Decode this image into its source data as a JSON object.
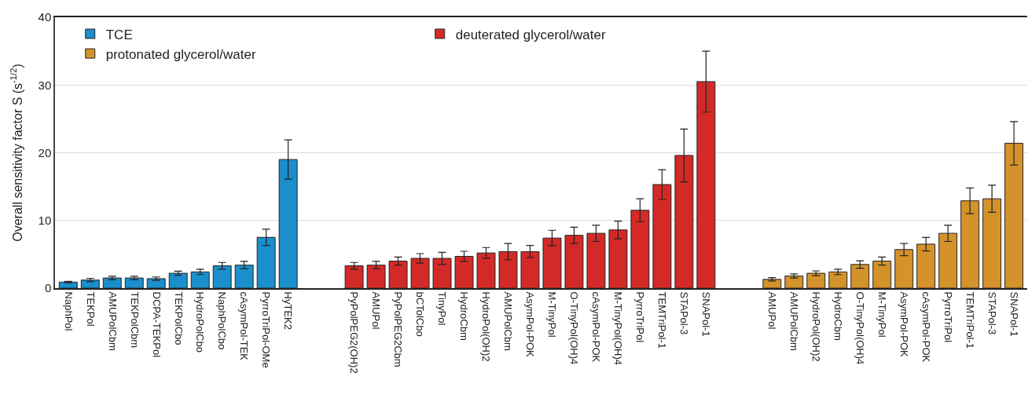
{
  "chart_data": {
    "type": "bar",
    "ylabel": "Overall sensitivity factor S (s$^{-1/2}$)",
    "categories": [
      "NaphPol",
      "TEKPol",
      "AMUPolCbm",
      "TEKPolCbm",
      "DCPA-TEKPol",
      "TEKPolCbo",
      "HydroPolCbo",
      "NaphPolCbo",
      "cAsymPol-TEK",
      "PyrroTriPol-OMe",
      "HyTEK2",
      null,
      null,
      "PyPolPEG2(OH)2",
      "AMUPol",
      "PyPolPEG2Cbm",
      "bCTolCbo",
      "TinyPol",
      "HydroCbm",
      "HydroPol(OH)2",
      "AMUPolCbm",
      "AsymPol-POK",
      "M-TinyPol",
      "O-TinyPol(OH)4",
      "cAsymPol-POK",
      "M-TinyPol(OH)4",
      "PyrroTriPol",
      "TEMTriPol-1",
      "STAPol-3",
      "SNAPol-1",
      null,
      null,
      "AMUPol",
      "AMUPolCbm",
      "HydroPol(OH)2",
      "HydroCbm",
      "O-TinyPol(OH)4",
      "M-TinyPol",
      "AsymPol-POK",
      "cAsymPol-POK",
      "PyrroTriPol",
      "TEMTriPol-1",
      "STAPol-3",
      "SNAPol-1"
    ],
    "series": [
      {
        "name": "TCE",
        "color": "#1b8fcb",
        "values": [
          0.9,
          1.2,
          1.5,
          1.5,
          1.4,
          2.2,
          2.4,
          3.3,
          3.4,
          7.5,
          19.0,
          null,
          null,
          null,
          null,
          null,
          null,
          null,
          null,
          null,
          null,
          null,
          null,
          null,
          null,
          null,
          null,
          null,
          null,
          null,
          null,
          null,
          null,
          null,
          null,
          null,
          null,
          null,
          null,
          null,
          null,
          null,
          null,
          null
        ],
        "errors": [
          0.1,
          0.25,
          0.25,
          0.25,
          0.25,
          0.3,
          0.4,
          0.5,
          0.55,
          1.2,
          2.9,
          null,
          null,
          null,
          null,
          null,
          null,
          null,
          null,
          null,
          null,
          null,
          null,
          null,
          null,
          null,
          null,
          null,
          null,
          null,
          null,
          null,
          null,
          null,
          null,
          null,
          null,
          null,
          null,
          null,
          null,
          null,
          null,
          null
        ]
      },
      {
        "name": "deuterated glycerol/water",
        "color": "#d42a27",
        "values": [
          null,
          null,
          null,
          null,
          null,
          null,
          null,
          null,
          null,
          null,
          null,
          null,
          null,
          3.3,
          3.4,
          4.0,
          4.4,
          4.4,
          4.7,
          5.2,
          5.4,
          5.4,
          7.4,
          7.8,
          8.1,
          8.6,
          11.5,
          15.3,
          19.6,
          30.5,
          null,
          null,
          null,
          null,
          null,
          null,
          null,
          null,
          null,
          null,
          null,
          null,
          null,
          null
        ],
        "errors": [
          null,
          null,
          null,
          null,
          null,
          null,
          null,
          null,
          null,
          null,
          null,
          null,
          null,
          0.5,
          0.55,
          0.6,
          0.7,
          0.9,
          0.75,
          0.8,
          1.2,
          0.9,
          1.15,
          1.2,
          1.2,
          1.3,
          1.7,
          2.2,
          3.9,
          4.5,
          null,
          null,
          null,
          null,
          null,
          null,
          null,
          null,
          null,
          null,
          null,
          null,
          null,
          null
        ]
      },
      {
        "name": "protonated glycerol/water",
        "color": "#d4922a",
        "values": [
          null,
          null,
          null,
          null,
          null,
          null,
          null,
          null,
          null,
          null,
          null,
          null,
          null,
          null,
          null,
          null,
          null,
          null,
          null,
          null,
          null,
          null,
          null,
          null,
          null,
          null,
          null,
          null,
          null,
          null,
          null,
          null,
          1.3,
          1.8,
          2.2,
          2.4,
          3.5,
          4.0,
          5.7,
          6.5,
          8.1,
          12.9,
          13.2,
          21.4
        ],
        "errors": [
          null,
          null,
          null,
          null,
          null,
          null,
          null,
          null,
          null,
          null,
          null,
          null,
          null,
          null,
          null,
          null,
          null,
          null,
          null,
          null,
          null,
          null,
          null,
          null,
          null,
          null,
          null,
          null,
          null,
          null,
          null,
          null,
          0.25,
          0.3,
          0.35,
          0.4,
          0.55,
          0.6,
          0.9,
          1.0,
          1.2,
          1.9,
          2.0,
          3.2
        ]
      }
    ],
    "ylim": [
      0,
      40
    ],
    "yticks": [
      0,
      10,
      20,
      30,
      40
    ],
    "grid": "y",
    "legend": "top"
  }
}
